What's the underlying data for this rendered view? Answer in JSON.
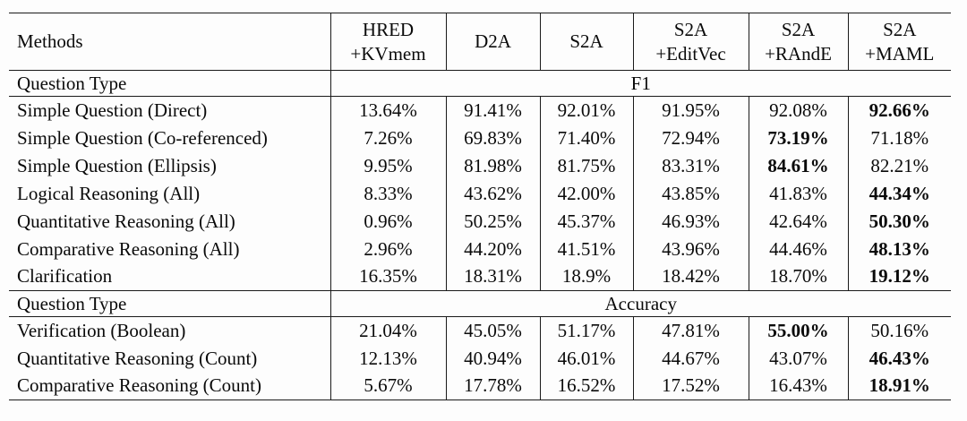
{
  "page": {
    "background": "#fdfdfd",
    "line_color": "#1a1a1a",
    "text_color": "#0a0a0a"
  },
  "table": {
    "methods_label": "Methods",
    "column_headers": [
      "HRED\n+KVmem",
      "D2A",
      "S2A",
      "S2A\n+EditVec",
      "S2A\n+RAndE",
      "S2A\n+MAML"
    ],
    "sections": [
      {
        "row_header": "Question Type",
        "metric": "F1",
        "rows": [
          {
            "label": "Simple Question (Direct)",
            "values": [
              "13.64%",
              "91.41%",
              "92.01%",
              "91.95%",
              "92.08%",
              "92.66%"
            ],
            "bold_index": 5
          },
          {
            "label": "Simple Question (Co-referenced)",
            "values": [
              "7.26%",
              "69.83%",
              "71.40%",
              "72.94%",
              "73.19%",
              "71.18%"
            ],
            "bold_index": 4
          },
          {
            "label": "Simple Question (Ellipsis)",
            "values": [
              "9.95%",
              "81.98%",
              "81.75%",
              "83.31%",
              "84.61%",
              "82.21%"
            ],
            "bold_index": 4
          },
          {
            "label": "Logical Reasoning (All)",
            "values": [
              "8.33%",
              "43.62%",
              "42.00%",
              "43.85%",
              "41.83%",
              "44.34%"
            ],
            "bold_index": 5
          },
          {
            "label": "Quantitative Reasoning (All)",
            "values": [
              "0.96%",
              "50.25%",
              "45.37%",
              "46.93%",
              "42.64%",
              "50.30%"
            ],
            "bold_index": 5
          },
          {
            "label": "Comparative Reasoning (All)",
            "values": [
              "2.96%",
              "44.20%",
              "41.51%",
              "43.96%",
              "44.46%",
              "48.13%"
            ],
            "bold_index": 5
          },
          {
            "label": "Clarification",
            "values": [
              "16.35%",
              "18.31%",
              "18.9%",
              "18.42%",
              "18.70%",
              "19.12%"
            ],
            "bold_index": 5
          }
        ]
      },
      {
        "row_header": "Question Type",
        "metric": "Accuracy",
        "rows": [
          {
            "label": "Verification (Boolean)",
            "values": [
              "21.04%",
              "45.05%",
              "51.17%",
              "47.81%",
              "55.00%",
              "50.16%"
            ],
            "bold_index": 4
          },
          {
            "label": "Quantitative Reasoning (Count)",
            "values": [
              "12.13%",
              "40.94%",
              "46.01%",
              "44.67%",
              "43.07%",
              "46.43%"
            ],
            "bold_index": 5
          },
          {
            "label": "Comparative Reasoning (Count)",
            "values": [
              "5.67%",
              "17.78%",
              "16.52%",
              "17.52%",
              "16.43%",
              "18.91%"
            ],
            "bold_index": 5
          }
        ]
      }
    ]
  }
}
